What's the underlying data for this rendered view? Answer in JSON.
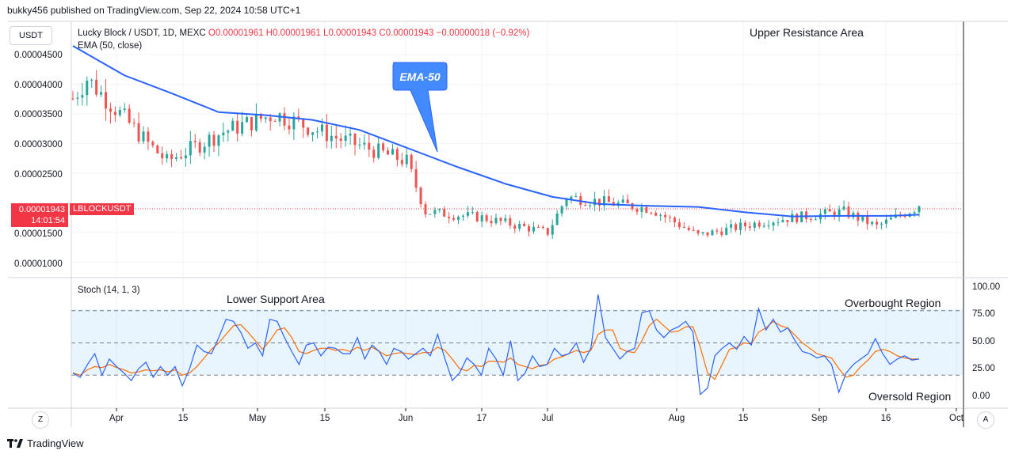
{
  "header": {
    "published": "bukky456 published on TradingView.com, Sep 22, 2024 10:58 UTC+1"
  },
  "main_pane": {
    "unit_button": "USDT",
    "legend_title": "Lucky Block / USDT, 1D, MEXC",
    "ohlc": "O0.00001961 H0.00001961 L0.00001943 C0.00001943 −0.00000018 (−0.92%)",
    "ema_legend": "EMA (50, close)",
    "price_badge": {
      "price": "0.00001943",
      "countdown": "14:01:54",
      "symbol": "LBLOCKUSDT"
    },
    "annotations": {
      "upper": "Upper Resistance Area",
      "callout": "EMA-50"
    },
    "y_ticks": [
      "0.00004500",
      "0.00004000",
      "0.00003500",
      "0.00003000",
      "0.00002500",
      "0.00001500",
      "0.00001000"
    ]
  },
  "stoch_pane": {
    "legend": "Stoch (14, 1, 3)",
    "annotations": {
      "lower": "Lower Support Area",
      "overbought": "Overbought Region",
      "oversold": "Oversold Region"
    },
    "y_ticks": [
      "100.00",
      "75.00",
      "50.00",
      "25.00",
      "0.00"
    ]
  },
  "x_axis": {
    "ticks": [
      "Apr",
      "15",
      "May",
      "15",
      "Jun",
      "17",
      "Jul",
      "Aug",
      "15",
      "Sep",
      "16",
      "Oct"
    ],
    "left_button": "Z",
    "right_button": "A"
  },
  "footer": {
    "brand": "TradingView"
  },
  "colors": {
    "up": "#26a69a",
    "down": "#ef5350",
    "ema": "#2962ff",
    "stoch_k": "#2962ff",
    "stoch_d": "#ff6d00",
    "band": "#2196f3"
  },
  "chart_data": [
    {
      "type": "candlestick",
      "title": "Lucky Block / USDT, 1D, MEXC",
      "ylim": [
        7.5e-06,
        5.05e-05
      ],
      "y_ticks": [
        4.5e-05,
        4e-05,
        3.5e-05,
        3e-05,
        2.5e-05,
        1.5e-05,
        1e-05
      ],
      "last_price": 1.943e-05,
      "ohlc_anchors": [
        {
          "date": "Mar 25",
          "close": 3.76e-05
        },
        {
          "date": "Mar 28",
          "close": 4.1e-05
        },
        {
          "date": "Apr 10",
          "close": 3e-05
        },
        {
          "date": "Apr 14",
          "close": 2.7e-05
        },
        {
          "date": "Apr 26",
          "close": 3.2e-05
        },
        {
          "date": "May 7",
          "close": 3.5e-05
        },
        {
          "date": "May 20",
          "close": 3.1e-05
        },
        {
          "date": "Jun 4",
          "close": 2.7e-05
        },
        {
          "date": "Jun 8",
          "close": 1.85e-05
        },
        {
          "date": "Jun 20",
          "close": 1.75e-05
        },
        {
          "date": "Jul 4",
          "close": 1.5e-05
        },
        {
          "date": "Jul 8",
          "close": 2.1e-05
        },
        {
          "date": "Jul 26",
          "close": 1.9e-05
        },
        {
          "date": "Aug 5",
          "close": 1.45e-05
        },
        {
          "date": "Aug 20",
          "close": 1.7e-05
        },
        {
          "date": "Sep 5",
          "close": 1.85e-05
        },
        {
          "date": "Sep 12",
          "close": 1.6e-05
        },
        {
          "date": "Sep 21",
          "close": 1.943e-05
        }
      ],
      "series": [
        {
          "name": "EMA (50, close)",
          "points": [
            {
              "x": "Mar 25",
              "y": 4.65e-05
            },
            {
              "x": "Apr 5",
              "y": 4.15e-05
            },
            {
              "x": "Apr 15",
              "y": 3.85e-05
            },
            {
              "x": "Apr 25",
              "y": 3.53e-05
            },
            {
              "x": "May 5",
              "y": 3.48e-05
            },
            {
              "x": "May 15",
              "y": 3.4e-05
            },
            {
              "x": "May 25",
              "y": 3.23e-05
            },
            {
              "x": "Jun 5",
              "y": 2.9e-05
            },
            {
              "x": "Jun 15",
              "y": 2.6e-05
            },
            {
              "x": "Jun 25",
              "y": 2.32e-05
            },
            {
              "x": "Jul 5",
              "y": 2.1e-05
            },
            {
              "x": "Jul 15",
              "y": 1.98e-05
            },
            {
              "x": "Jul 25",
              "y": 1.95e-05
            },
            {
              "x": "Aug 5",
              "y": 1.93e-05
            },
            {
              "x": "Aug 15",
              "y": 1.84e-05
            },
            {
              "x": "Aug 25",
              "y": 1.77e-05
            },
            {
              "x": "Sep 5",
              "y": 1.78e-05
            },
            {
              "x": "Sep 15",
              "y": 1.78e-05
            },
            {
              "x": "Sep 21",
              "y": 1.8e-05
            }
          ]
        }
      ]
    },
    {
      "type": "line",
      "title": "Stoch (14, 1, 3)",
      "ylim": [
        -10,
        110
      ],
      "y_ticks": [
        100,
        75,
        50,
        25,
        0
      ],
      "bands": [
        20,
        50,
        80
      ],
      "series": [
        {
          "name": "%K",
          "values": [
            22,
            18,
            30,
            40,
            20,
            35,
            28,
            22,
            15,
            26,
            32,
            18,
            28,
            20,
            28,
            10,
            26,
            48,
            42,
            40,
            55,
            72,
            70,
            60,
            45,
            50,
            38,
            72,
            70,
            55,
            42,
            30,
            48,
            50,
            38,
            46,
            45,
            40,
            40,
            55,
            35,
            48,
            42,
            30,
            45,
            42,
            35,
            40,
            45,
            38,
            58,
            35,
            15,
            22,
            36,
            30,
            20,
            45,
            35,
            20,
            52,
            15,
            22,
            38,
            28,
            30,
            45,
            38,
            40,
            50,
            32,
            45,
            95,
            55,
            45,
            35,
            42,
            45,
            78,
            80,
            62,
            55,
            62,
            65,
            70,
            60,
            2,
            8,
            38,
            45,
            50,
            44,
            56,
            48,
            82,
            62,
            72,
            60,
            64,
            52,
            42,
            40,
            36,
            38,
            30,
            4,
            22,
            30,
            35,
            40,
            54,
            40,
            30,
            35,
            38,
            34,
            35
          ]
        },
        {
          "name": "%D",
          "values": [
            22,
            20,
            25,
            28,
            27,
            30,
            27,
            25,
            22,
            23,
            25,
            24,
            25,
            23,
            25,
            20,
            22,
            28,
            36,
            44,
            50,
            58,
            66,
            67,
            60,
            52,
            44,
            52,
            62,
            64,
            55,
            42,
            40,
            43,
            45,
            45,
            43,
            44,
            42,
            46,
            43,
            46,
            42,
            38,
            40,
            41,
            40,
            39,
            41,
            41,
            46,
            43,
            35,
            26,
            24,
            29,
            28,
            33,
            33,
            32,
            36,
            30,
            28,
            26,
            29,
            30,
            35,
            37,
            40,
            43,
            41,
            43,
            58,
            62,
            62,
            45,
            42,
            41,
            52,
            66,
            72,
            66,
            60,
            61,
            65,
            65,
            46,
            22,
            16,
            30,
            44,
            46,
            50,
            49,
            60,
            64,
            70,
            66,
            64,
            57,
            50,
            45,
            40,
            38,
            36,
            26,
            18,
            20,
            28,
            34,
            42,
            44,
            42,
            38,
            36,
            35,
            35
          ]
        }
      ]
    }
  ]
}
